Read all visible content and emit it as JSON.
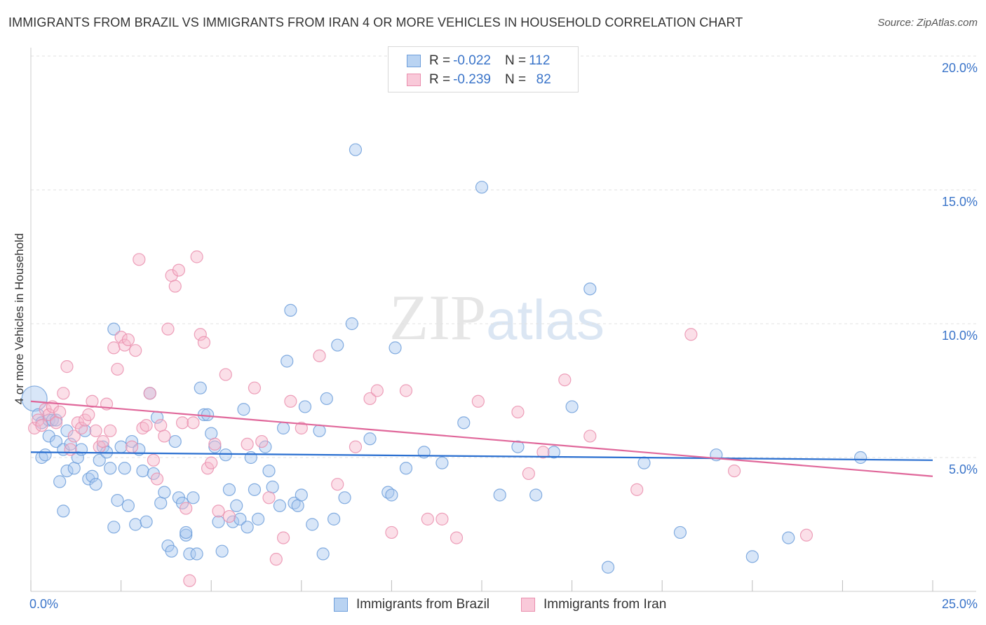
{
  "header": {
    "title": "IMMIGRANTS FROM BRAZIL VS IMMIGRANTS FROM IRAN 4 OR MORE VEHICLES IN HOUSEHOLD CORRELATION CHART",
    "source": "Source: ZipAtlas.com"
  },
  "watermark": {
    "zip": "ZIP",
    "atlas": "atlas"
  },
  "legend": {
    "brazil": {
      "r_label": "R = ",
      "r_value": "-0.022",
      "n_label": "N = ",
      "n_value": "112"
    },
    "iran": {
      "r_label": "R = ",
      "r_value": "-0.239",
      "n_label": "N = ",
      "n_value": " 82"
    }
  },
  "colors": {
    "brazil_fill": "#a9c8ef",
    "brazil_stroke": "#6f9fdb",
    "brazil_line": "#2a6fd0",
    "iran_fill": "#f6b9cd",
    "iran_stroke": "#ea8fae",
    "iran_line": "#e0679a",
    "tick_text": "#3a74c9"
  },
  "chart_data": {
    "type": "scatter",
    "title": "IMMIGRANTS FROM BRAZIL VS IMMIGRANTS FROM IRAN 4 OR MORE VEHICLES IN HOUSEHOLD CORRELATION CHART",
    "xlabel": "",
    "ylabel": "4 or more Vehicles in Household",
    "xlim": [
      0,
      25
    ],
    "ylim": [
      0,
      20
    ],
    "x_tick_labels": [
      "0.0%",
      "25.0%"
    ],
    "y_tick_labels": [
      "5.0%",
      "10.0%",
      "15.0%",
      "20.0%"
    ],
    "y_ticks": [
      5,
      10,
      15,
      20
    ],
    "grid": true,
    "series": [
      {
        "name": "Immigrants from Brazil",
        "R": -0.022,
        "N": 112,
        "trend": {
          "x": [
            0,
            25
          ],
          "y": [
            5.2,
            4.9
          ]
        },
        "points": [
          [
            0.1,
            7.2
          ],
          [
            0.2,
            6.6
          ],
          [
            0.3,
            5.0
          ],
          [
            0.3,
            6.3
          ],
          [
            0.4,
            5.1
          ],
          [
            0.5,
            6.4
          ],
          [
            0.5,
            5.8
          ],
          [
            0.6,
            6.4
          ],
          [
            0.7,
            5.6
          ],
          [
            0.7,
            6.4
          ],
          [
            0.8,
            4.1
          ],
          [
            0.9,
            5.3
          ],
          [
            1.0,
            4.5
          ],
          [
            1.0,
            6.0
          ],
          [
            1.1,
            5.5
          ],
          [
            1.2,
            4.6
          ],
          [
            1.3,
            5.0
          ],
          [
            1.4,
            5.3
          ],
          [
            1.5,
            6.0
          ],
          [
            1.6,
            4.2
          ],
          [
            1.7,
            4.3
          ],
          [
            1.8,
            4.0
          ],
          [
            1.9,
            4.9
          ],
          [
            2.0,
            5.4
          ],
          [
            2.1,
            5.2
          ],
          [
            2.2,
            4.6
          ],
          [
            2.3,
            9.8
          ],
          [
            2.4,
            3.4
          ],
          [
            2.5,
            5.4
          ],
          [
            2.6,
            4.6
          ],
          [
            2.7,
            3.2
          ],
          [
            2.8,
            5.6
          ],
          [
            2.9,
            2.5
          ],
          [
            3.0,
            5.3
          ],
          [
            3.1,
            4.5
          ],
          [
            3.2,
            2.6
          ],
          [
            3.3,
            7.4
          ],
          [
            3.4,
            4.4
          ],
          [
            3.5,
            6.5
          ],
          [
            3.6,
            3.3
          ],
          [
            3.7,
            3.7
          ],
          [
            3.8,
            1.7
          ],
          [
            3.9,
            1.5
          ],
          [
            4.0,
            5.6
          ],
          [
            4.1,
            3.5
          ],
          [
            4.2,
            3.3
          ],
          [
            4.3,
            2.1
          ],
          [
            4.4,
            1.4
          ],
          [
            4.5,
            3.5
          ],
          [
            4.6,
            1.4
          ],
          [
            4.7,
            7.6
          ],
          [
            4.8,
            6.6
          ],
          [
            4.9,
            6.6
          ],
          [
            5.0,
            5.9
          ],
          [
            5.1,
            5.4
          ],
          [
            5.2,
            2.6
          ],
          [
            5.3,
            1.5
          ],
          [
            5.4,
            5.1
          ],
          [
            5.5,
            3.8
          ],
          [
            5.6,
            2.6
          ],
          [
            5.7,
            3.2
          ],
          [
            5.8,
            2.7
          ],
          [
            5.9,
            6.8
          ],
          [
            6.0,
            2.4
          ],
          [
            6.1,
            5.0
          ],
          [
            6.2,
            3.8
          ],
          [
            6.3,
            2.7
          ],
          [
            6.5,
            5.4
          ],
          [
            6.6,
            4.5
          ],
          [
            6.9,
            3.2
          ],
          [
            7.0,
            6.1
          ],
          [
            7.1,
            8.6
          ],
          [
            7.2,
            10.5
          ],
          [
            7.3,
            3.3
          ],
          [
            7.4,
            3.2
          ],
          [
            7.5,
            3.6
          ],
          [
            7.6,
            6.9
          ],
          [
            7.8,
            2.5
          ],
          [
            8.0,
            6.0
          ],
          [
            8.1,
            1.4
          ],
          [
            8.2,
            7.2
          ],
          [
            8.4,
            2.7
          ],
          [
            8.5,
            9.2
          ],
          [
            8.7,
            3.5
          ],
          [
            8.9,
            10.0
          ],
          [
            9.0,
            16.5
          ],
          [
            9.4,
            5.7
          ],
          [
            9.9,
            3.7
          ],
          [
            10.0,
            3.6
          ],
          [
            10.1,
            9.1
          ],
          [
            10.4,
            4.6
          ],
          [
            10.9,
            5.2
          ],
          [
            11.4,
            4.8
          ],
          [
            12.0,
            6.3
          ],
          [
            12.5,
            15.1
          ],
          [
            13.0,
            3.6
          ],
          [
            13.5,
            5.4
          ],
          [
            14.0,
            3.6
          ],
          [
            14.5,
            5.2
          ],
          [
            15.0,
            6.9
          ],
          [
            15.5,
            11.3
          ],
          [
            16.0,
            0.9
          ],
          [
            17.0,
            4.8
          ],
          [
            18.0,
            2.2
          ],
          [
            19.0,
            5.1
          ],
          [
            20.0,
            1.3
          ],
          [
            21.0,
            2.0
          ],
          [
            23.0,
            5.0
          ],
          [
            0.9,
            3.0
          ],
          [
            2.3,
            2.4
          ],
          [
            4.3,
            2.2
          ],
          [
            6.7,
            3.9
          ]
        ]
      },
      {
        "name": "Immigrants from Iran",
        "R": -0.239,
        "N": 82,
        "trend": {
          "x": [
            0,
            25
          ],
          "y": [
            7.1,
            4.3
          ]
        },
        "points": [
          [
            0.1,
            6.1
          ],
          [
            0.2,
            6.4
          ],
          [
            0.3,
            6.2
          ],
          [
            0.4,
            6.8
          ],
          [
            0.5,
            6.6
          ],
          [
            0.6,
            6.9
          ],
          [
            0.7,
            6.3
          ],
          [
            0.8,
            6.7
          ],
          [
            0.9,
            7.4
          ],
          [
            1.0,
            8.4
          ],
          [
            1.1,
            5.3
          ],
          [
            1.2,
            5.8
          ],
          [
            1.3,
            6.3
          ],
          [
            1.4,
            6.1
          ],
          [
            1.5,
            6.4
          ],
          [
            1.6,
            6.6
          ],
          [
            1.7,
            7.1
          ],
          [
            1.8,
            6.0
          ],
          [
            1.9,
            5.4
          ],
          [
            2.0,
            5.6
          ],
          [
            2.1,
            7.0
          ],
          [
            2.2,
            6.0
          ],
          [
            2.3,
            9.1
          ],
          [
            2.4,
            8.3
          ],
          [
            2.5,
            9.5
          ],
          [
            2.6,
            9.2
          ],
          [
            2.7,
            9.4
          ],
          [
            2.8,
            5.4
          ],
          [
            2.9,
            9.0
          ],
          [
            3.0,
            12.4
          ],
          [
            3.1,
            6.1
          ],
          [
            3.2,
            6.2
          ],
          [
            3.3,
            7.4
          ],
          [
            3.4,
            4.9
          ],
          [
            3.5,
            4.2
          ],
          [
            3.6,
            6.2
          ],
          [
            3.7,
            5.8
          ],
          [
            3.8,
            9.8
          ],
          [
            3.9,
            11.8
          ],
          [
            4.0,
            11.4
          ],
          [
            4.1,
            12.0
          ],
          [
            4.2,
            6.3
          ],
          [
            4.3,
            3.1
          ],
          [
            4.4,
            0.4
          ],
          [
            4.5,
            6.3
          ],
          [
            4.6,
            12.5
          ],
          [
            4.7,
            9.6
          ],
          [
            4.8,
            9.3
          ],
          [
            4.9,
            4.6
          ],
          [
            5.0,
            4.8
          ],
          [
            5.1,
            5.5
          ],
          [
            5.2,
            3.0
          ],
          [
            5.4,
            8.1
          ],
          [
            5.5,
            2.8
          ],
          [
            6.0,
            5.5
          ],
          [
            6.2,
            7.6
          ],
          [
            6.4,
            5.6
          ],
          [
            6.6,
            3.5
          ],
          [
            6.8,
            1.2
          ],
          [
            7.0,
            2.0
          ],
          [
            7.2,
            7.1
          ],
          [
            7.5,
            6.1
          ],
          [
            8.0,
            8.8
          ],
          [
            8.5,
            4.0
          ],
          [
            9.0,
            5.4
          ],
          [
            9.4,
            7.2
          ],
          [
            9.6,
            7.5
          ],
          [
            10.0,
            2.2
          ],
          [
            10.4,
            7.5
          ],
          [
            11.0,
            2.7
          ],
          [
            11.4,
            2.7
          ],
          [
            11.8,
            2.0
          ],
          [
            12.4,
            7.1
          ],
          [
            13.5,
            6.7
          ],
          [
            13.8,
            4.4
          ],
          [
            14.2,
            5.2
          ],
          [
            14.8,
            7.9
          ],
          [
            15.5,
            5.8
          ],
          [
            16.8,
            3.8
          ],
          [
            18.3,
            9.6
          ],
          [
            19.5,
            4.5
          ],
          [
            21.5,
            2.1
          ]
        ]
      }
    ]
  },
  "axes": {
    "ylabel": "4 or more Vehicles in Household",
    "x_min_label": "0.0%",
    "x_max_label": "25.0%"
  },
  "bottom_legend": {
    "brazil": "Immigrants from Brazil",
    "iran": "Immigrants from Iran"
  }
}
